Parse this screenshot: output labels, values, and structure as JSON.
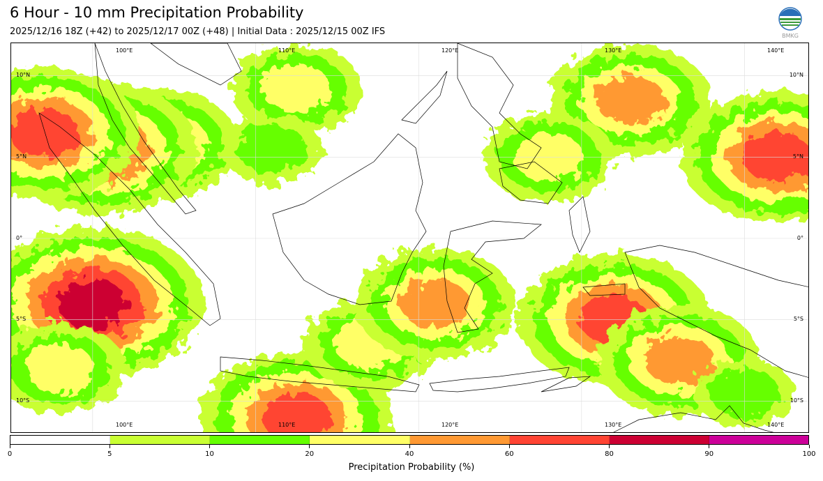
{
  "header": {
    "title": "6 Hour - 10 mm Precipitation Probability",
    "subtitle": "2025/12/16 18Z (+42) to 2025/12/17 00Z (+48) | Initial Data : 2025/12/15 00Z IFS",
    "logo_text": "BMKG"
  },
  "map": {
    "lon_labels_top": [
      "100°E",
      "110°E",
      "120°E",
      "130°E",
      "140°E"
    ],
    "lon_labels_bottom": [
      "100°E",
      "110°E",
      "120°E",
      "130°E",
      "140°E"
    ],
    "lat_labels_left": [
      "10°N",
      "5°N",
      "0°",
      "5°S",
      "10°S"
    ],
    "lat_labels_right": [
      "10°N",
      "5°N",
      "0°",
      "5°S",
      "10°S"
    ],
    "extent": {
      "lon_min": 95,
      "lon_max": 144,
      "lat_min": -12,
      "lat_max": 12
    },
    "graticule_lons": [
      100,
      110,
      120,
      130,
      140
    ],
    "graticule_lats": [
      10,
      5,
      0,
      -5,
      -10
    ],
    "rain_regions": [
      {
        "name": "north-of-borneo",
        "lon": 112.5,
        "lat": 9.2,
        "level": 2
      },
      {
        "name": "south-china-sea-west",
        "lon": 111,
        "lat": 5.5,
        "level": 1
      },
      {
        "name": "malay-peninsula",
        "lon": 104,
        "lat": 5.8,
        "level": 3
      },
      {
        "name": "northern-sumatra",
        "lon": 100.5,
        "lat": 5.5,
        "level": 4
      },
      {
        "name": "andaman-sea",
        "lon": 97,
        "lat": 6.5,
        "level": 4
      },
      {
        "name": "west-sumatra-ocean",
        "lon": 100,
        "lat": -4,
        "level": 5
      },
      {
        "name": "indian-ocean-south",
        "lon": 98,
        "lat": -8,
        "level": 2
      },
      {
        "name": "south-of-java",
        "lon": 112.5,
        "lat": -11,
        "level": 4
      },
      {
        "name": "java-sea-east",
        "lon": 117,
        "lat": -6.5,
        "level": 2
      },
      {
        "name": "makassar-strait",
        "lon": 121,
        "lat": -4,
        "level": 3
      },
      {
        "name": "philippine-sea",
        "lon": 133,
        "lat": 8.5,
        "level": 3
      },
      {
        "name": "pacific-east",
        "lon": 142,
        "lat": 5,
        "level": 4
      },
      {
        "name": "philippines-south",
        "lon": 128,
        "lat": 5,
        "level": 2
      },
      {
        "name": "new-guinea-south",
        "lon": 132,
        "lat": -5,
        "level": 4
      },
      {
        "name": "arafura-sea",
        "lon": 136,
        "lat": -7.5,
        "level": 3
      },
      {
        "name": "gulf-of-carpentaria-north",
        "lon": 140,
        "lat": -9.5,
        "level": 1
      }
    ]
  },
  "colorbar": {
    "label": "Precipitation Probability (%)",
    "ticks": [
      "0",
      "5",
      "10",
      "20",
      "40",
      "60",
      "80",
      "90",
      "100"
    ],
    "colors": [
      "#ffffff",
      "#c9ff33",
      "#66ff00",
      "#ffff66",
      "#ff9933",
      "#ff4433",
      "#cc0033",
      "#cc0099"
    ]
  }
}
